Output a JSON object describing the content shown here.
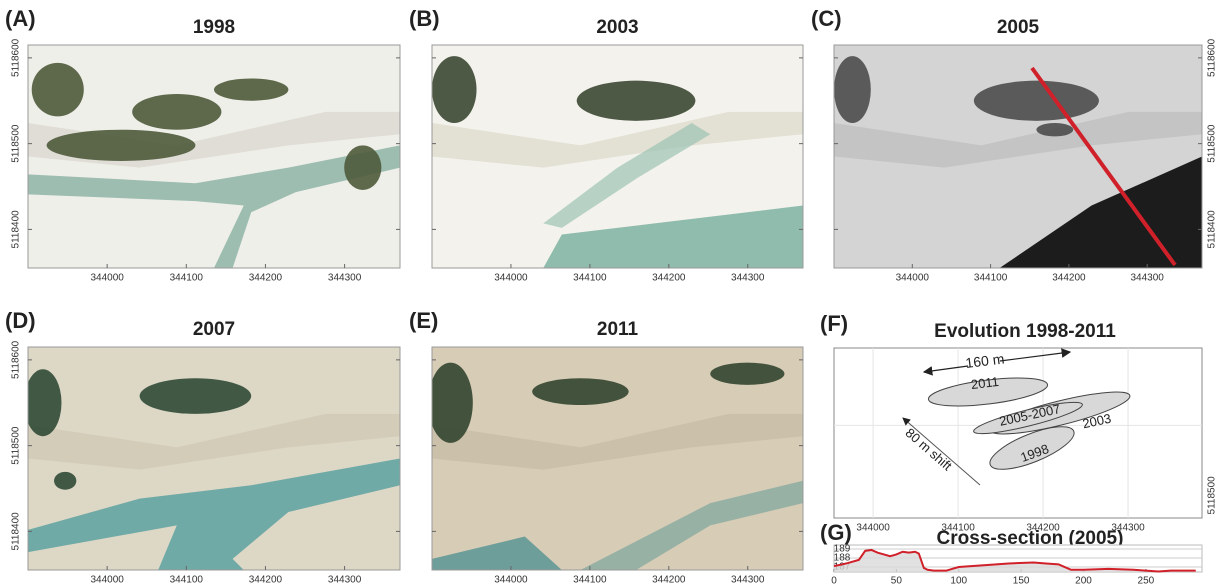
{
  "panels": [
    {
      "label": "(A)",
      "title": "1998"
    },
    {
      "label": "(B)",
      "title": "2003"
    },
    {
      "label": "(C)",
      "title": "2005"
    },
    {
      "label": "(D)",
      "title": "2007"
    },
    {
      "label": "(E)",
      "title": "2011"
    },
    {
      "label": "(F)",
      "title": "Evolution 1998-2011"
    },
    {
      "label": "(G)",
      "title": "Cross-section (2005)"
    }
  ],
  "photo_axes": {
    "xlim": [
      343900,
      344370
    ],
    "xticks": [
      344000,
      344100,
      344200,
      344300
    ],
    "ylim": [
      5118355,
      5118615
    ],
    "yticks": [
      5118400,
      5118500,
      5118600
    ]
  },
  "evolution_map": {
    "xlim": [
      343954,
      344387
    ],
    "xticks": [
      344000,
      344100,
      344200,
      344300
    ],
    "ylim": [
      5118391,
      5118591
    ],
    "yticks": [
      5118500
    ],
    "annotations": [
      "160 m",
      "80 m shift"
    ],
    "deposit_labels": [
      "2011",
      "2005-2007",
      "2003",
      "1998"
    ]
  },
  "chart_data": {
    "type": "line",
    "color": "#d0202a",
    "x": [
      0,
      10,
      20,
      25,
      30,
      35,
      40,
      45,
      50,
      55,
      60,
      65,
      68,
      72,
      75,
      80,
      90,
      95,
      100,
      120,
      140,
      160,
      170,
      180,
      185,
      190,
      200,
      220,
      240,
      250,
      260,
      270,
      290
    ],
    "values": [
      187.1,
      187.4,
      187.8,
      188.8,
      188.9,
      188.6,
      188.4,
      188.2,
      188.4,
      188.7,
      188.6,
      188.7,
      188.5,
      186.9,
      186.7,
      186.6,
      186.6,
      186.8,
      187.0,
      187.2,
      187.4,
      187.5,
      187.4,
      187.3,
      187.0,
      186.7,
      186.7,
      186.8,
      186.7,
      186.6,
      186.5,
      186.6,
      186.6
    ],
    "xlim": [
      0,
      295
    ],
    "ylim": [
      186.45,
      189.45
    ],
    "xticks": [
      0,
      50,
      100,
      150,
      200,
      250
    ],
    "yticks": [
      187,
      188,
      189
    ],
    "grid": true
  }
}
